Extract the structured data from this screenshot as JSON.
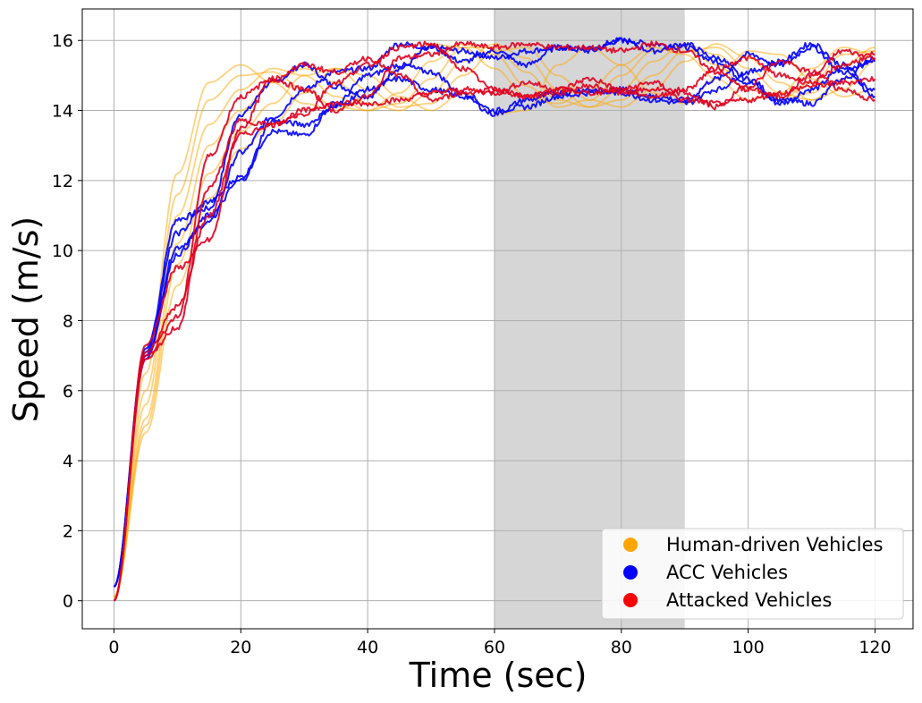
{
  "chart_data": {
    "type": "line",
    "title": "",
    "xlabel": "Time (sec)",
    "ylabel": "Speed (m/s)",
    "xlim": [
      -5,
      126
    ],
    "ylim": [
      -0.8,
      16.9
    ],
    "xticks": [
      0,
      20,
      40,
      60,
      80,
      100,
      120
    ],
    "yticks": [
      0,
      2,
      4,
      6,
      8,
      10,
      12,
      14,
      16
    ],
    "grid": true,
    "legend_position": "bottom-right",
    "shaded_region": {
      "x_start": 60,
      "x_end": 90,
      "color": "#d6d6d6"
    },
    "legend": [
      {
        "label": "Human-driven Vehicles",
        "color": "#ffa500"
      },
      {
        "label": "ACC Vehicles",
        "color": "#0000ff"
      },
      {
        "label": "Attacked Vehicles",
        "color": "#ff0000"
      }
    ],
    "series": [
      {
        "group": "human",
        "color": "#ffa500",
        "x": [
          0,
          5,
          10,
          15,
          20,
          25,
          30,
          35,
          40,
          45,
          50,
          55,
          60,
          65,
          70,
          75,
          80,
          85,
          90,
          95,
          100,
          105,
          110,
          115,
          120
        ],
        "y": [
          0.1,
          6.5,
          12.2,
          14.8,
          15.3,
          14.8,
          14.2,
          14.0,
          14.4,
          15.2,
          15.9,
          15.8,
          15.2,
          14.4,
          14.2,
          14.6,
          15.3,
          15.8,
          15.6,
          14.9,
          14.3,
          14.5,
          15.2,
          15.8,
          15.6
        ]
      },
      {
        "group": "human",
        "color": "#ffa500",
        "x": [
          0,
          5,
          10,
          15,
          20,
          25,
          30,
          35,
          40,
          45,
          50,
          55,
          60,
          65,
          70,
          75,
          80,
          85,
          90,
          95,
          100,
          105,
          110,
          115,
          120
        ],
        "y": [
          0.1,
          6.0,
          11.6,
          14.3,
          15.0,
          15.1,
          14.6,
          14.1,
          14.0,
          14.5,
          15.4,
          15.9,
          15.6,
          14.7,
          14.1,
          14.3,
          15.0,
          15.7,
          15.8,
          15.3,
          14.6,
          14.3,
          14.8,
          15.6,
          15.7
        ]
      },
      {
        "group": "human",
        "color": "#ffa500",
        "x": [
          0,
          5,
          10,
          15,
          20,
          25,
          30,
          35,
          40,
          45,
          50,
          55,
          60,
          65,
          70,
          75,
          80,
          85,
          90,
          95,
          100,
          105,
          110,
          115,
          120
        ],
        "y": [
          0.1,
          5.6,
          11.0,
          13.6,
          14.6,
          15.2,
          15.0,
          14.4,
          14.0,
          14.2,
          14.9,
          15.8,
          15.8,
          15.1,
          14.3,
          14.1,
          14.6,
          15.4,
          15.9,
          15.6,
          14.9,
          14.3,
          14.5,
          15.3,
          15.8
        ]
      },
      {
        "group": "human",
        "color": "#ffa500",
        "x": [
          0,
          5,
          10,
          15,
          20,
          25,
          30,
          35,
          40,
          45,
          50,
          55,
          60,
          65,
          70,
          75,
          80,
          85,
          90,
          95,
          100,
          105,
          110,
          115,
          120
        ],
        "y": [
          0.1,
          5.2,
          10.2,
          13.0,
          14.0,
          14.8,
          15.2,
          14.8,
          14.2,
          14.0,
          14.5,
          15.4,
          15.9,
          15.5,
          14.6,
          14.1,
          14.3,
          15.0,
          15.7,
          15.8,
          15.2,
          14.5,
          14.3,
          14.9,
          15.7
        ]
      },
      {
        "group": "human",
        "color": "#ffa500",
        "x": [
          0,
          5,
          10,
          15,
          20,
          25,
          30,
          35,
          40,
          45,
          50,
          55,
          60,
          65,
          70,
          75,
          80,
          85,
          90,
          95,
          100,
          105,
          110,
          115,
          120
        ],
        "y": [
          0.1,
          5.0,
          9.6,
          12.2,
          13.4,
          14.2,
          15.0,
          15.2,
          14.6,
          14.1,
          14.2,
          15.0,
          15.7,
          15.8,
          15.0,
          14.3,
          14.1,
          14.6,
          15.4,
          15.9,
          15.5,
          14.8,
          14.3,
          14.6,
          15.4
        ]
      },
      {
        "group": "human",
        "color": "#ffa500",
        "x": [
          0,
          5,
          10,
          15,
          20,
          25,
          30,
          35,
          40,
          45,
          50,
          55,
          60,
          65,
          70,
          75,
          80,
          85,
          90,
          95,
          100,
          105,
          110,
          115,
          120
        ],
        "y": [
          0.1,
          4.8,
          9.0,
          11.5,
          12.9,
          13.6,
          14.5,
          15.2,
          15.0,
          14.4,
          14.0,
          14.5,
          13.9,
          14.0,
          15.3,
          15.8,
          15.3,
          14.5,
          14.2,
          14.9,
          15.7,
          15.6,
          14.9,
          14.4,
          14.6
        ]
      },
      {
        "group": "acc",
        "color": "#0000ff",
        "x": [
          0,
          5,
          10,
          15,
          20,
          25,
          30,
          35,
          40,
          45,
          50,
          55,
          60,
          65,
          70,
          75,
          80,
          85,
          90,
          95,
          100,
          105,
          110,
          115,
          120
        ],
        "y": [
          0.4,
          7.2,
          10.9,
          11.2,
          13.9,
          14.8,
          15.3,
          14.7,
          14.4,
          15.2,
          15.8,
          15.7,
          15.5,
          15.7,
          15.8,
          15.7,
          16.0,
          15.9,
          15.8,
          15.4,
          14.8,
          14.2,
          14.6,
          15.2,
          15.4
        ]
      },
      {
        "group": "acc",
        "color": "#0000ff",
        "x": [
          0,
          5,
          10,
          15,
          20,
          25,
          30,
          35,
          40,
          45,
          50,
          55,
          60,
          65,
          70,
          75,
          80,
          85,
          90,
          95,
          100,
          105,
          110,
          115,
          120
        ],
        "y": [
          0.4,
          7.0,
          10.1,
          10.8,
          12.8,
          13.8,
          14.6,
          15.1,
          15.2,
          15.9,
          15.8,
          15.4,
          15.7,
          15.3,
          15.8,
          15.8,
          16.0,
          15.7,
          15.9,
          15.5,
          14.9,
          14.3,
          14.2,
          14.9,
          15.5
        ]
      },
      {
        "group": "acc",
        "color": "#0000ff",
        "x": [
          0,
          5,
          10,
          15,
          20,
          25,
          30,
          35,
          40,
          45,
          50,
          55,
          60,
          65,
          70,
          75,
          80,
          85,
          90,
          95,
          100,
          105,
          110,
          115,
          120
        ],
        "y": [
          0.4,
          7.1,
          10.5,
          11.4,
          12.1,
          13.4,
          13.3,
          14.2,
          15.0,
          15.3,
          15.1,
          14.5,
          14.0,
          14.1,
          14.4,
          14.5,
          14.6,
          14.4,
          14.3,
          14.9,
          15.6,
          15.3,
          15.8,
          15.1,
          14.6
        ]
      },
      {
        "group": "acc",
        "color": "#0000ff",
        "x": [
          0,
          5,
          10,
          15,
          20,
          25,
          30,
          35,
          40,
          45,
          50,
          55,
          60,
          65,
          70,
          75,
          80,
          85,
          90,
          95,
          100,
          105,
          110,
          115,
          120
        ],
        "y": [
          0.4,
          6.9,
          9.9,
          11.0,
          12.0,
          13.7,
          13.6,
          14.1,
          14.6,
          14.9,
          14.6,
          14.4,
          13.9,
          14.3,
          14.5,
          14.6,
          14.5,
          14.3,
          14.2,
          14.6,
          15.1,
          15.4,
          15.9,
          15.3,
          14.4
        ]
      },
      {
        "group": "attacked",
        "color": "#e0001e",
        "x": [
          0,
          5,
          10,
          15,
          20,
          25,
          30,
          35,
          40,
          45,
          50,
          55,
          60,
          65,
          70,
          75,
          80,
          85,
          90,
          95,
          100,
          105,
          110,
          115,
          120
        ],
        "y": [
          0.0,
          7.3,
          9.5,
          10.3,
          13.5,
          14.9,
          14.6,
          14.0,
          14.4,
          15.5,
          15.6,
          15.9,
          15.8,
          15.9,
          15.8,
          15.8,
          15.7,
          15.9,
          15.7,
          15.1,
          14.6,
          14.4,
          15.0,
          15.7,
          15.5
        ]
      },
      {
        "group": "attacked",
        "color": "#e0001e",
        "x": [
          0,
          5,
          10,
          15,
          20,
          25,
          30,
          35,
          40,
          45,
          50,
          55,
          60,
          65,
          70,
          75,
          80,
          85,
          90,
          95,
          100,
          105,
          110,
          115,
          120
        ],
        "y": [
          0.0,
          7.1,
          8.4,
          11.0,
          13.3,
          13.6,
          14.0,
          14.2,
          14.2,
          14.3,
          14.5,
          14.6,
          14.5,
          14.8,
          14.6,
          14.9,
          14.6,
          14.8,
          14.3,
          14.2,
          14.3,
          14.5,
          14.7,
          14.8,
          14.9
        ]
      },
      {
        "group": "attacked",
        "color": "#e0001e",
        "x": [
          0,
          5,
          10,
          15,
          20,
          25,
          30,
          35,
          40,
          45,
          50,
          55,
          60,
          65,
          70,
          75,
          80,
          85,
          90,
          95,
          100,
          105,
          110,
          115,
          120
        ],
        "y": [
          0.0,
          7.0,
          8.1,
          12.7,
          14.4,
          14.9,
          15.3,
          15.1,
          15.5,
          15.0,
          14.3,
          14.5,
          14.6,
          14.4,
          14.6,
          14.5,
          14.6,
          14.4,
          14.6,
          15.2,
          15.5,
          15.0,
          14.8,
          15.3,
          15.6
        ]
      },
      {
        "group": "attacked",
        "color": "#e0001e",
        "x": [
          0,
          5,
          10,
          15,
          20,
          25,
          30,
          35,
          40,
          45,
          50,
          55,
          60,
          65,
          70,
          75,
          80,
          85,
          90,
          95,
          100,
          105,
          110,
          115,
          120
        ],
        "y": [
          0.0,
          6.9,
          7.8,
          11.8,
          13.7,
          13.6,
          13.9,
          14.8,
          15.3,
          15.8,
          15.9,
          15.2,
          14.6,
          14.4,
          14.5,
          14.7,
          14.5,
          14.6,
          14.5,
          14.1,
          14.7,
          15.4,
          15.1,
          14.6,
          14.3
        ]
      }
    ]
  }
}
